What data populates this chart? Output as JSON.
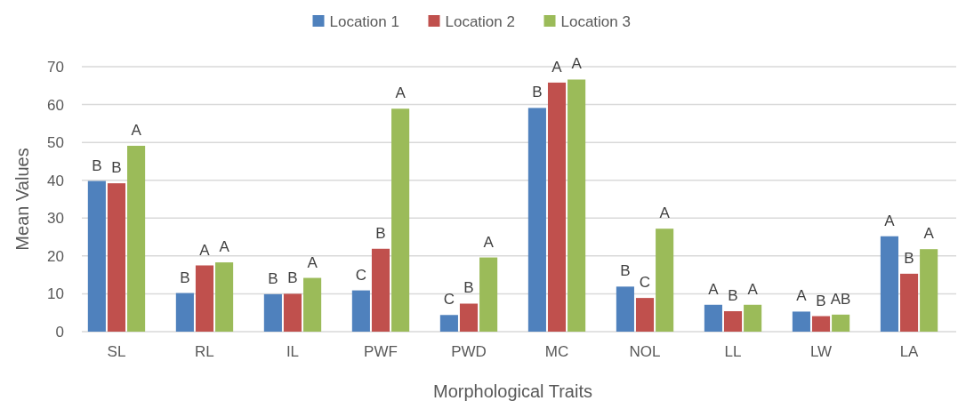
{
  "chart_data": {
    "type": "bar",
    "xlabel": "Morphological Traits",
    "ylabel": "Mean Values",
    "categories": [
      "SL",
      "RL",
      "IL",
      "PWF",
      "PWD",
      "MC",
      "NOL",
      "LL",
      "LW",
      "LA"
    ],
    "series": [
      {
        "name": "Location 1",
        "color": "#4f81bd",
        "values": [
          39.8,
          10.2,
          9.9,
          10.9,
          4.4,
          59.1,
          11.9,
          7.1,
          5.3,
          25.2
        ],
        "value_labels": [
          "B",
          "B",
          "B",
          "C",
          "C",
          "B",
          "B",
          "A",
          "A",
          "A"
        ]
      },
      {
        "name": "Location 2",
        "color": "#c0504d",
        "values": [
          39.2,
          17.5,
          10,
          21.9,
          7.4,
          65.8,
          8.9,
          5.4,
          4.1,
          15.3
        ],
        "value_labels": [
          "B",
          "A",
          "B",
          "B",
          "B",
          "A",
          "C",
          "B",
          "B",
          "B"
        ]
      },
      {
        "name": "Location 3",
        "color": "#9bbb59",
        "values": [
          49.1,
          18.3,
          14.2,
          58.9,
          19.6,
          66.6,
          27.2,
          7.1,
          4.5,
          21.8
        ],
        "value_labels": [
          "A",
          "A",
          "A",
          "A",
          "A",
          "A",
          "A",
          "A",
          "AB",
          "A"
        ]
      }
    ],
    "ylim": [
      0,
      70
    ],
    "yticks": [
      0,
      10,
      20,
      30,
      40,
      50,
      60,
      70
    ],
    "grid": "y",
    "legend": "top"
  }
}
